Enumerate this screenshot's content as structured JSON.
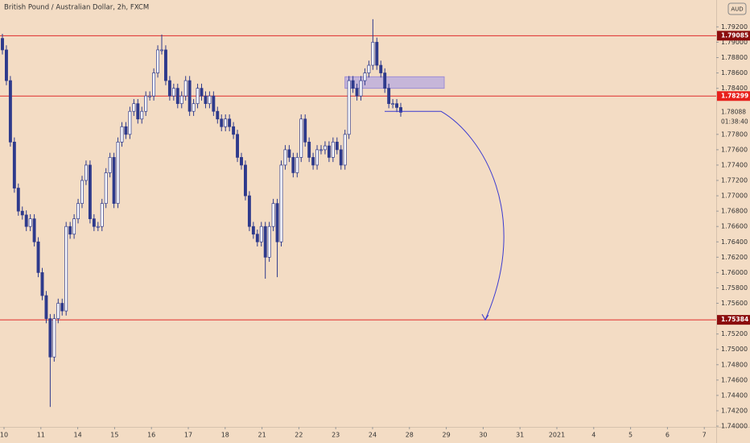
{
  "chart_data": {
    "type": "candlestick",
    "title": "British Pound / Australian Dollar, 2h, FXCM",
    "currency": "AUD",
    "x_labels": [
      "10",
      "11",
      "14",
      "15",
      "16",
      "17",
      "18",
      "21",
      "22",
      "23",
      "24",
      "28",
      "29",
      "30",
      "31",
      "2021",
      "4",
      "5",
      "6",
      "7"
    ],
    "open": [
      1.7905,
      1.789,
      1.785,
      1.777,
      1.771,
      1.768,
      1.7675,
      1.766,
      1.767,
      1.764,
      1.76,
      1.757,
      1.754,
      1.749,
      1.754,
      1.756,
      1.755,
      1.766,
      1.765,
      1.767,
      1.769,
      1.772,
      1.774,
      1.767,
      1.766,
      1.766,
      1.769,
      1.773,
      1.775,
      1.769,
      1.777,
      1.779,
      1.778,
      1.781,
      1.782,
      1.78,
      1.781,
      1.783,
      1.783,
      1.786,
      1.789,
      1.789,
      1.785,
      1.783,
      1.784,
      1.782,
      1.783,
      1.785,
      1.781,
      1.782,
      1.784,
      1.783,
      1.782,
      1.783,
      1.781,
      1.78,
      1.779,
      1.78,
      1.779,
      1.778,
      1.775,
      1.774,
      1.77,
      1.766,
      1.765,
      1.764,
      1.766,
      1.762,
      1.766,
      1.769,
      1.764,
      1.774,
      1.776,
      1.775,
      1.773,
      1.775,
      1.78,
      1.777,
      1.775,
      1.774,
      1.776,
      1.776,
      1.7765,
      1.775,
      1.777,
      1.776,
      1.774,
      1.778,
      1.785,
      1.784,
      1.783,
      1.785,
      1.786,
      1.787,
      1.79,
      1.787,
      1.786,
      1.784,
      1.782,
      1.782,
      1.7815
    ],
    "high": [
      1.7911,
      1.7896,
      1.7856,
      1.7776,
      1.7716,
      1.7686,
      1.7681,
      1.7676,
      1.7676,
      1.7646,
      1.7606,
      1.7576,
      1.7546,
      1.7546,
      1.7566,
      1.7566,
      1.7666,
      1.7666,
      1.7676,
      1.7696,
      1.7726,
      1.7746,
      1.7746,
      1.7676,
      1.7666,
      1.7696,
      1.7736,
      1.7756,
      1.7756,
      1.7776,
      1.7796,
      1.7796,
      1.7816,
      1.7826,
      1.7826,
      1.7816,
      1.7836,
      1.7836,
      1.7866,
      1.7896,
      1.791,
      1.7896,
      1.7856,
      1.7846,
      1.7846,
      1.7836,
      1.7856,
      1.7856,
      1.7826,
      1.7846,
      1.7846,
      1.7836,
      1.7836,
      1.7836,
      1.7816,
      1.7806,
      1.7806,
      1.7806,
      1.7796,
      1.7786,
      1.7756,
      1.7746,
      1.7706,
      1.7666,
      1.7656,
      1.7666,
      1.7666,
      1.7666,
      1.7696,
      1.7696,
      1.7746,
      1.7766,
      1.7766,
      1.7756,
      1.7756,
      1.7806,
      1.7806,
      1.7776,
      1.7756,
      1.7766,
      1.7766,
      1.7771,
      1.7771,
      1.7776,
      1.7776,
      1.7766,
      1.7786,
      1.7856,
      1.7856,
      1.7846,
      1.7856,
      1.7866,
      1.7876,
      1.793,
      1.7906,
      1.7876,
      1.7866,
      1.7846,
      1.7826,
      1.7826,
      1.7821
    ],
    "low": [
      1.7884,
      1.7844,
      1.7764,
      1.7704,
      1.7674,
      1.7669,
      1.7654,
      1.7654,
      1.7634,
      1.7594,
      1.7564,
      1.7534,
      1.7425,
      1.7484,
      1.7534,
      1.7544,
      1.7544,
      1.7644,
      1.7644,
      1.7664,
      1.7684,
      1.7714,
      1.7664,
      1.7654,
      1.7654,
      1.7654,
      1.7684,
      1.7724,
      1.7684,
      1.7684,
      1.7764,
      1.7774,
      1.7774,
      1.7804,
      1.7794,
      1.7794,
      1.7804,
      1.7824,
      1.7824,
      1.7854,
      1.7884,
      1.7844,
      1.7824,
      1.7824,
      1.7814,
      1.7814,
      1.7824,
      1.7804,
      1.7804,
      1.7814,
      1.7824,
      1.7814,
      1.7814,
      1.7804,
      1.7794,
      1.7784,
      1.7784,
      1.7784,
      1.7774,
      1.7744,
      1.7734,
      1.7694,
      1.7654,
      1.7644,
      1.7634,
      1.7634,
      1.7592,
      1.7614,
      1.7654,
      1.7594,
      1.7634,
      1.7734,
      1.7744,
      1.7724,
      1.7724,
      1.7744,
      1.7764,
      1.7744,
      1.7734,
      1.7734,
      1.7754,
      1.7754,
      1.7744,
      1.7744,
      1.7754,
      1.7734,
      1.7734,
      1.7774,
      1.7834,
      1.7824,
      1.7824,
      1.7844,
      1.7854,
      1.7864,
      1.7864,
      1.7854,
      1.7834,
      1.7814,
      1.7814,
      1.7809,
      1.7803
    ],
    "close": [
      1.789,
      1.785,
      1.777,
      1.771,
      1.768,
      1.7675,
      1.766,
      1.767,
      1.764,
      1.76,
      1.757,
      1.754,
      1.749,
      1.754,
      1.756,
      1.755,
      1.766,
      1.765,
      1.767,
      1.769,
      1.772,
      1.774,
      1.767,
      1.766,
      1.766,
      1.769,
      1.773,
      1.775,
      1.769,
      1.777,
      1.779,
      1.778,
      1.781,
      1.782,
      1.78,
      1.781,
      1.783,
      1.783,
      1.786,
      1.789,
      1.789,
      1.785,
      1.783,
      1.784,
      1.782,
      1.783,
      1.785,
      1.781,
      1.782,
      1.784,
      1.783,
      1.782,
      1.783,
      1.781,
      1.78,
      1.779,
      1.78,
      1.779,
      1.778,
      1.775,
      1.774,
      1.77,
      1.766,
      1.765,
      1.764,
      1.766,
      1.762,
      1.766,
      1.769,
      1.764,
      1.774,
      1.776,
      1.775,
      1.773,
      1.775,
      1.78,
      1.777,
      1.775,
      1.774,
      1.776,
      1.776,
      1.7765,
      1.775,
      1.777,
      1.776,
      1.774,
      1.778,
      1.785,
      1.784,
      1.783,
      1.785,
      1.786,
      1.787,
      1.79,
      1.787,
      1.786,
      1.784,
      1.782,
      1.782,
      1.7815,
      1.78088
    ],
    "up_color": "#ffffff",
    "down_color": "#2e3a8c",
    "line_color": "#e02b2b",
    "ylim": [
      1.7399,
      1.7955
    ],
    "yticks": [
      {
        "value": 1.792,
        "label": "1.79200"
      },
      {
        "value": 1.79,
        "label": "1.79000"
      },
      {
        "value": 1.788,
        "label": "1.78800"
      },
      {
        "value": 1.786,
        "label": "1.78600"
      },
      {
        "value": 1.784,
        "label": "1.78400"
      },
      {
        "value": 1.778,
        "label": "1.77800"
      },
      {
        "value": 1.776,
        "label": "1.77600"
      },
      {
        "value": 1.774,
        "label": "1.77400"
      },
      {
        "value": 1.772,
        "label": "1.77200"
      },
      {
        "value": 1.77,
        "label": "1.77000"
      },
      {
        "value": 1.768,
        "label": "1.76800"
      },
      {
        "value": 1.766,
        "label": "1.76600"
      },
      {
        "value": 1.764,
        "label": "1.76400"
      },
      {
        "value": 1.762,
        "label": "1.76200"
      },
      {
        "value": 1.76,
        "label": "1.76000"
      },
      {
        "value": 1.758,
        "label": "1.75800"
      },
      {
        "value": 1.756,
        "label": "1.75600"
      },
      {
        "value": 1.752,
        "label": "1.75200"
      },
      {
        "value": 1.75,
        "label": "1.75000"
      },
      {
        "value": 1.748,
        "label": "1.74800"
      },
      {
        "value": 1.746,
        "label": "1.74600"
      },
      {
        "value": 1.744,
        "label": "1.74400"
      },
      {
        "value": 1.742,
        "label": "1.74200"
      },
      {
        "value": 1.74,
        "label": "1.74000"
      }
    ],
    "levels": [
      1.79085,
      1.78299,
      1.75384
    ],
    "last_price": 1.78088,
    "countdown": "01:38:40",
    "zone": {
      "low": 1.784,
      "high": 1.7855,
      "color": "#b7a9e0"
    },
    "projection": {
      "from": 1.781,
      "to": 1.75384,
      "color": "#3a3ad0"
    }
  }
}
